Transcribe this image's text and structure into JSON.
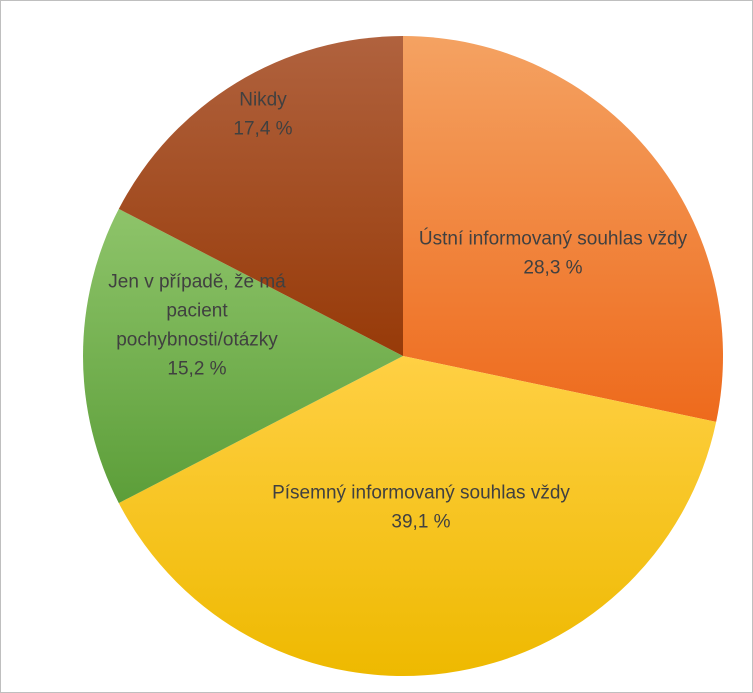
{
  "chart_data": {
    "type": "pie",
    "title": "",
    "slices": [
      {
        "label_lines": [
          "Ústní informovaný souhlas vždy"
        ],
        "value_text": "28,3 %",
        "value": 28.3,
        "color_light": "#F4A262",
        "color_dark": "#EE6A1C"
      },
      {
        "label_lines": [
          "Písemný informovaný souhlas vždy"
        ],
        "value_text": "39,1 %",
        "value": 39.1,
        "color_light": "#FFD044",
        "color_dark": "#EEB900"
      },
      {
        "label_lines": [
          "Jen v případě, že má",
          "pacient",
          "pochybnosti/otázky"
        ],
        "value_text": "15,2 %",
        "value": 15.2,
        "color_light": "#8EC46A",
        "color_dark": "#5C9E39"
      },
      {
        "label_lines": [
          "Nikdy"
        ],
        "value_text": "17,4 %",
        "value": 17.4,
        "color_light": "#B0623E",
        "color_dark": "#973A08"
      }
    ],
    "start": "12 o'clock",
    "direction": "clockwise",
    "legend": "none"
  }
}
